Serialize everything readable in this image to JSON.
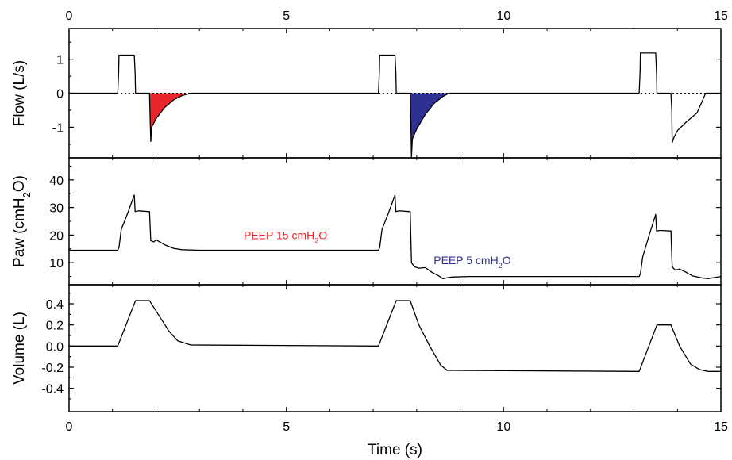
{
  "chart_data": {
    "type": "line",
    "shared_x": {
      "label": "Time (s)",
      "range": [
        0,
        15
      ],
      "ticks": [
        0,
        5,
        10,
        15
      ],
      "tick_labels": [
        "0",
        "5",
        "10",
        "15"
      ]
    },
    "panels": [
      {
        "id": "flow",
        "ylabel": "Flow (L/s)",
        "ylim": [
          -1.9,
          1.9
        ],
        "yticks": [
          -1,
          0,
          1
        ],
        "ytick_labels": [
          "-1",
          "0",
          "1"
        ],
        "zero_line": "dotted",
        "fills": [
          {
            "x_start": 1.85,
            "x_end": 2.65,
            "color": "#e8262c"
          },
          {
            "x_start": 7.85,
            "x_end": 8.7,
            "color": "#2e3192"
          }
        ],
        "series": [
          {
            "color": "#000000",
            "x": [
              0,
              1.12,
              1.14,
              1.15,
              1.5,
              1.52,
              1.53,
              1.85,
              1.87,
              1.88,
              1.9,
              2.0,
              2.2,
              2.4,
              2.6,
              2.75,
              2.8,
              7.12,
              7.14,
              7.15,
              7.5,
              7.52,
              7.53,
              7.85,
              7.87,
              7.88,
              7.9,
              8.0,
              8.2,
              8.4,
              8.6,
              8.7,
              8.75,
              13.12,
              13.14,
              13.15,
              13.5,
              13.52,
              13.53,
              13.85,
              13.87,
              13.88,
              13.92,
              14.0,
              14.2,
              14.45,
              14.6,
              14.65,
              15.0
            ],
            "y": [
              0,
              0,
              0.6,
              1.12,
              1.12,
              0.6,
              0,
              0,
              -1.0,
              -1.42,
              -1.0,
              -0.75,
              -0.42,
              -0.2,
              -0.07,
              -0.02,
              0,
              0,
              0.6,
              1.12,
              1.12,
              0.6,
              0,
              0,
              -1.2,
              -1.88,
              -1.35,
              -1.05,
              -0.62,
              -0.3,
              -0.1,
              -0.03,
              0,
              0,
              0.6,
              1.18,
              1.18,
              0.6,
              0,
              0,
              -0.5,
              -1.45,
              -1.3,
              -1.1,
              -0.85,
              -0.58,
              -0.15,
              0,
              0
            ]
          }
        ]
      },
      {
        "id": "paw",
        "ylabel": "Paw (cmH₂O)",
        "ylim": [
          2,
          48
        ],
        "yticks": [
          10,
          20,
          30,
          40
        ],
        "ytick_labels": [
          "10",
          "20",
          "30",
          "40"
        ],
        "annotations": [
          {
            "text": "PEEP 15 cmH₂O",
            "x": 4.98,
            "y": 18.5,
            "color": "#e8262c"
          },
          {
            "text": "PEEP  5 cmH₂O",
            "x": 9.28,
            "y": 9.5,
            "color": "#2e3192"
          }
        ],
        "series": [
          {
            "color": "#000000",
            "x": [
              0,
              1.12,
              1.15,
              1.2,
              1.35,
              1.5,
              1.52,
              1.6,
              1.85,
              1.88,
              1.95,
              2.0,
              2.2,
              2.4,
              2.6,
              3.0,
              7.12,
              7.15,
              7.2,
              7.35,
              7.5,
              7.52,
              7.6,
              7.85,
              7.88,
              7.95,
              8.05,
              8.2,
              8.35,
              8.5,
              8.6,
              8.8,
              9.2,
              13.12,
              13.15,
              13.2,
              13.35,
              13.5,
              13.52,
              13.6,
              13.85,
              13.88,
              13.95,
              14.05,
              14.2,
              14.35,
              14.55,
              14.7,
              15.0
            ],
            "y": [
              14.5,
              14.5,
              15.5,
              22,
              28,
              34.5,
              28.5,
              28.8,
              28.5,
              18,
              17.5,
              18.3,
              16.5,
              15.2,
              14.7,
              14.5,
              14.5,
              15.5,
              22,
              28,
              34.5,
              28.5,
              28.8,
              28.5,
              10,
              8.5,
              8.0,
              8.2,
              6.5,
              5.3,
              4.2,
              4.8,
              5.0,
              5.0,
              6.0,
              12,
              20,
              27.5,
              21.5,
              21.7,
              21.5,
              8.5,
              7.3,
              7.7,
              6.5,
              5.2,
              4.5,
              4.2,
              5.0
            ]
          }
        ]
      },
      {
        "id": "volume",
        "ylabel": "Volume (L)",
        "ylim": [
          -0.62,
          0.58
        ],
        "yticks": [
          -0.4,
          -0.2,
          0.0,
          0.2,
          0.4
        ],
        "ytick_labels": [
          "-0.4",
          "-0.2",
          "0.0",
          "0.2",
          "0.4"
        ],
        "series": [
          {
            "color": "#000000",
            "x": [
              0,
              1.12,
              1.53,
              1.85,
              2.05,
              2.3,
              2.5,
              2.8,
              7.12,
              7.53,
              7.85,
              8.05,
              8.3,
              8.55,
              8.7,
              13.12,
              13.53,
              13.85,
              14.05,
              14.3,
              14.5,
              14.7,
              15.0
            ],
            "y": [
              0,
              0,
              0.43,
              0.43,
              0.3,
              0.14,
              0.05,
              0.01,
              0,
              0.43,
              0.43,
              0.2,
              0.0,
              -0.18,
              -0.23,
              -0.24,
              0.2,
              0.2,
              0.0,
              -0.17,
              -0.22,
              -0.24,
              -0.24
            ]
          }
        ]
      }
    ]
  }
}
